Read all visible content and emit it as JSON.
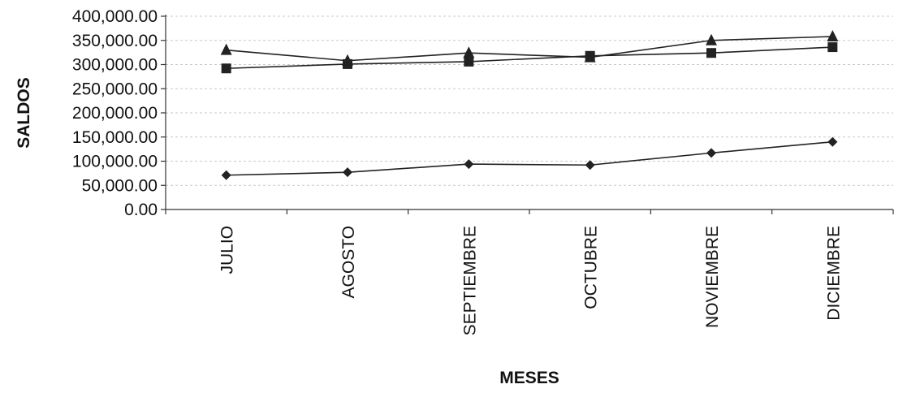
{
  "chart_data": {
    "type": "line",
    "title": "",
    "xlabel": "MESES",
    "ylabel": "SALDOS",
    "categories": [
      "JULIO",
      "AGOSTO",
      "SEPTIEMBRE",
      "OCTUBRE",
      "NOVIEMBRE",
      "DICIEMBRE"
    ],
    "ylim": [
      0,
      400000
    ],
    "y_ticks": [
      0,
      50000,
      100000,
      150000,
      200000,
      250000,
      300000,
      350000,
      400000
    ],
    "y_tick_labels": [
      "0.00",
      "50,000.00",
      "100,000.00",
      "150,000.00",
      "200,000.00",
      "250,000.00",
      "300,000.00",
      "350,000.00",
      "400,000.00"
    ],
    "grid": true,
    "legend": "none",
    "series": [
      {
        "marker": "diamond",
        "values": [
          71000,
          77000,
          94000,
          92000,
          117000,
          140000
        ]
      },
      {
        "marker": "square",
        "values": [
          292000,
          301000,
          306000,
          318000,
          324000,
          336000
        ]
      },
      {
        "marker": "triangle",
        "values": [
          330000,
          308000,
          324000,
          315000,
          350000,
          358000
        ]
      }
    ],
    "colors": {
      "line": "#222222",
      "marker": "#222222",
      "grid": "#c8c8c8"
    }
  }
}
